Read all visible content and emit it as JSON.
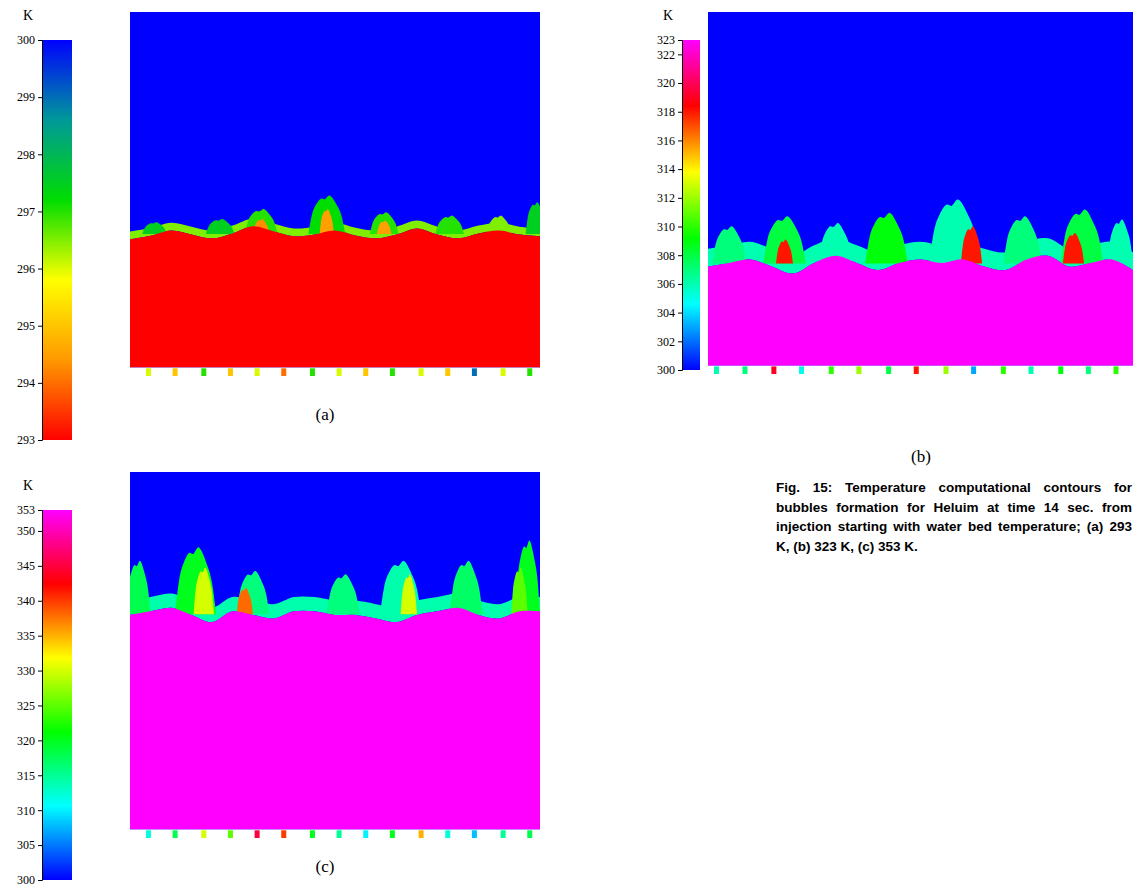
{
  "chart_data": [
    {
      "type": "contour",
      "label": "(a)",
      "xlim": [
        0,
        1
      ],
      "ylim": [
        -0.03,
        1
      ],
      "tick_labels": false,
      "bed_bottom": 0,
      "gas_temperature": 300,
      "liquid_temperature": 293,
      "colorbar": {
        "title": "K",
        "range": [
          293,
          300
        ],
        "ticks": [
          293,
          294,
          295,
          296,
          297,
          298,
          299,
          300
        ],
        "colors": [
          "#ff0000",
          "#ff9900",
          "#ffff00",
          "#00dd00",
          "#009999",
          "#0000ff"
        ]
      },
      "interface": {
        "x": [
          0,
          0.05,
          0.1,
          0.15,
          0.2,
          0.25,
          0.3,
          0.35,
          0.4,
          0.45,
          0.5,
          0.55,
          0.6,
          0.65,
          0.7,
          0.75,
          0.8,
          0.85,
          0.9,
          0.95,
          1
        ],
        "y": [
          0.36,
          0.37,
          0.385,
          0.374,
          0.363,
          0.377,
          0.397,
          0.383,
          0.369,
          0.374,
          0.385,
          0.371,
          0.363,
          0.374,
          0.391,
          0.374,
          0.363,
          0.377,
          0.385,
          0.374,
          0.369
        ]
      },
      "mixing_layer": {
        "temperature": 296.5,
        "thickness": 0.022
      },
      "plumes": [
        {
          "x": 0.06,
          "width": 0.06,
          "top": 0.41,
          "temperature": 297.5
        },
        {
          "x": 0.22,
          "width": 0.07,
          "top": 0.42,
          "temperature": 297.5
        },
        {
          "x": 0.32,
          "width": 0.08,
          "top": 0.45,
          "temperature": 297
        },
        {
          "x": 0.32,
          "width": 0.04,
          "top": 0.42,
          "temperature": 294.3
        },
        {
          "x": 0.48,
          "width": 0.09,
          "top": 0.49,
          "temperature": 297.2
        },
        {
          "x": 0.48,
          "width": 0.035,
          "top": 0.45,
          "temperature": 294.5
        },
        {
          "x": 0.62,
          "width": 0.07,
          "top": 0.44,
          "temperature": 297
        },
        {
          "x": 0.62,
          "width": 0.035,
          "top": 0.415,
          "temperature": 294.5
        },
        {
          "x": 0.78,
          "width": 0.07,
          "top": 0.43,
          "temperature": 297
        },
        {
          "x": 0.9,
          "width": 0.06,
          "top": 0.43,
          "temperature": 296.5
        },
        {
          "x": 0.99,
          "width": 0.05,
          "top": 0.47,
          "temperature": 297.5
        }
      ],
      "nozzles": {
        "x": [
          0.045,
          0.11,
          0.18,
          0.245,
          0.31,
          0.375,
          0.445,
          0.51,
          0.575,
          0.64,
          0.71,
          0.775,
          0.84,
          0.91,
          0.975
        ],
        "temperature": [
          296,
          295,
          297,
          295,
          296,
          294,
          297,
          296,
          295,
          297,
          296,
          295,
          299,
          296,
          297
        ]
      }
    },
    {
      "type": "contour",
      "label": "(b)",
      "xlim": [
        0,
        1
      ],
      "ylim": [
        -0.03,
        1
      ],
      "tick_labels": false,
      "bed_bottom": 0,
      "gas_temperature": 300,
      "liquid_temperature": 323,
      "colorbar": {
        "title": "K",
        "range": [
          300,
          323
        ],
        "ticks": [
          300,
          302,
          304,
          306,
          308,
          310,
          312,
          314,
          316,
          318,
          320,
          322,
          323
        ],
        "colors": [
          "#0000ff",
          "#00ffff",
          "#00ff00",
          "#ffff00",
          "#ff0000",
          "#ff00ff"
        ]
      },
      "interface": {
        "x": [
          0,
          0.05,
          0.1,
          0.15,
          0.2,
          0.25,
          0.3,
          0.35,
          0.4,
          0.45,
          0.5,
          0.55,
          0.6,
          0.65,
          0.7,
          0.75,
          0.8,
          0.85,
          0.9,
          0.95,
          1
        ],
        "y": [
          0.28,
          0.29,
          0.3,
          0.28,
          0.26,
          0.29,
          0.31,
          0.29,
          0.27,
          0.29,
          0.3,
          0.29,
          0.3,
          0.28,
          0.27,
          0.3,
          0.31,
          0.28,
          0.29,
          0.3,
          0.27
        ]
      },
      "mixing_layer": {
        "temperature": 306,
        "thickness": 0.05
      },
      "plumes": [
        {
          "x": 0.05,
          "width": 0.08,
          "top": 0.4,
          "temperature": 307
        },
        {
          "x": 0.18,
          "width": 0.1,
          "top": 0.43,
          "temperature": 308
        },
        {
          "x": 0.18,
          "width": 0.04,
          "top": 0.36,
          "temperature": 318
        },
        {
          "x": 0.3,
          "width": 0.08,
          "top": 0.41,
          "temperature": 306
        },
        {
          "x": 0.42,
          "width": 0.1,
          "top": 0.44,
          "temperature": 309
        },
        {
          "x": 0.58,
          "width": 0.12,
          "top": 0.48,
          "temperature": 306
        },
        {
          "x": 0.62,
          "width": 0.05,
          "top": 0.4,
          "temperature": 318
        },
        {
          "x": 0.74,
          "width": 0.09,
          "top": 0.43,
          "temperature": 307
        },
        {
          "x": 0.88,
          "width": 0.1,
          "top": 0.45,
          "temperature": 308
        },
        {
          "x": 0.86,
          "width": 0.05,
          "top": 0.38,
          "temperature": 318
        },
        {
          "x": 0.97,
          "width": 0.06,
          "top": 0.42,
          "temperature": 306
        }
      ],
      "nozzles": {
        "x": [
          0.02,
          0.087,
          0.155,
          0.22,
          0.29,
          0.355,
          0.425,
          0.49,
          0.56,
          0.625,
          0.695,
          0.76,
          0.83,
          0.895,
          0.96
        ],
        "temperature": [
          306,
          307,
          319,
          305,
          310,
          312,
          308,
          318,
          312,
          303,
          310,
          306,
          309,
          307,
          310
        ]
      }
    },
    {
      "type": "contour",
      "label": "(c)",
      "xlim": [
        0,
        1
      ],
      "ylim": [
        -0.03,
        1
      ],
      "tick_labels": false,
      "bed_bottom": 0,
      "gas_temperature": 300,
      "liquid_temperature": 353,
      "colorbar": {
        "title": "K",
        "range": [
          300,
          353
        ],
        "ticks": [
          300,
          305,
          310,
          315,
          320,
          325,
          330,
          335,
          340,
          345,
          350,
          353
        ],
        "colors": [
          "#0000ff",
          "#00ffff",
          "#00ff00",
          "#ffff00",
          "#ff0000",
          "#ff00ff"
        ]
      },
      "interface": {
        "x": [
          0,
          0.05,
          0.1,
          0.15,
          0.2,
          0.25,
          0.3,
          0.35,
          0.4,
          0.45,
          0.5,
          0.55,
          0.6,
          0.65,
          0.7,
          0.75,
          0.8,
          0.85,
          0.9,
          0.95,
          1
        ],
        "y": [
          0.6,
          0.61,
          0.62,
          0.6,
          0.58,
          0.61,
          0.6,
          0.59,
          0.61,
          0.61,
          0.6,
          0.6,
          0.59,
          0.58,
          0.6,
          0.61,
          0.62,
          0.6,
          0.59,
          0.61,
          0.61
        ]
      },
      "mixing_layer": {
        "temperature": 314,
        "thickness": 0.04
      },
      "plumes": [
        {
          "x": 0.02,
          "width": 0.06,
          "top": 0.76,
          "temperature": 318
        },
        {
          "x": 0.16,
          "width": 0.1,
          "top": 0.8,
          "temperature": 320
        },
        {
          "x": 0.18,
          "width": 0.05,
          "top": 0.74,
          "temperature": 330
        },
        {
          "x": 0.3,
          "width": 0.08,
          "top": 0.73,
          "temperature": 316
        },
        {
          "x": 0.28,
          "width": 0.04,
          "top": 0.68,
          "temperature": 338
        },
        {
          "x": 0.52,
          "width": 0.08,
          "top": 0.72,
          "temperature": 316
        },
        {
          "x": 0.66,
          "width": 0.1,
          "top": 0.76,
          "temperature": 314
        },
        {
          "x": 0.68,
          "width": 0.04,
          "top": 0.72,
          "temperature": 330
        },
        {
          "x": 0.82,
          "width": 0.08,
          "top": 0.76,
          "temperature": 317
        },
        {
          "x": 0.97,
          "width": 0.06,
          "top": 0.82,
          "temperature": 320
        },
        {
          "x": 0.95,
          "width": 0.04,
          "top": 0.74,
          "temperature": 325
        }
      ],
      "nozzles": {
        "x": [
          0.045,
          0.11,
          0.18,
          0.245,
          0.31,
          0.375,
          0.445,
          0.51,
          0.575,
          0.64,
          0.71,
          0.775,
          0.84,
          0.91,
          0.975
        ],
        "temperature": [
          312,
          318,
          330,
          325,
          345,
          340,
          320,
          315,
          310,
          320,
          335,
          312,
          308,
          315,
          318
        ]
      }
    }
  ],
  "caption": "Fig. 15: Temperature computational contours for bubbles formation for Heluim at time 14 sec. from injection starting with water bed temperature; (a) 293 K, (b) 323 K, (c) 353 K."
}
